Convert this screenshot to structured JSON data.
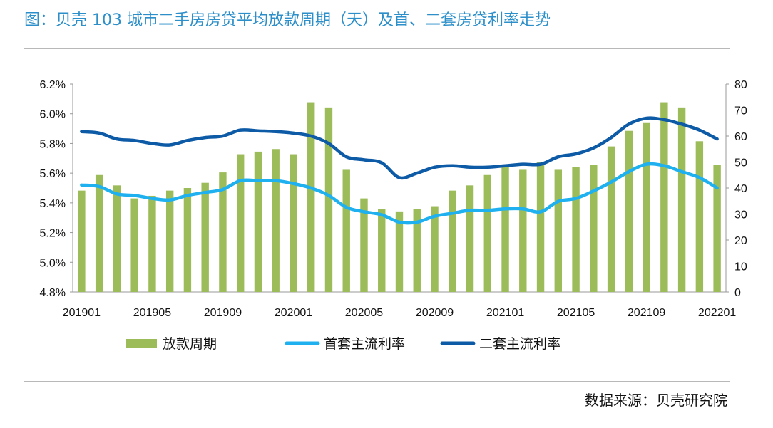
{
  "header": {
    "title": "图：贝壳 103 城市二手房房贷平均放款周期（天）及首、二套房贷利率走势"
  },
  "footer": {
    "source": "数据来源：贝壳研究院"
  },
  "colors": {
    "bar": "#9cbb59",
    "first_rate": "#1fb0ef",
    "second_rate": "#0d5aa6",
    "title": "#2c8fc9"
  },
  "chart_data": {
    "type": "bar+line",
    "categories": [
      "201901",
      "201902",
      "201903",
      "201904",
      "201905",
      "201906",
      "201907",
      "201908",
      "201909",
      "201910",
      "201911",
      "201912",
      "202001",
      "202002",
      "202003",
      "202004",
      "202005",
      "202006",
      "202007",
      "202008",
      "202009",
      "202010",
      "202011",
      "202012",
      "202101",
      "202102",
      "202103",
      "202104",
      "202105",
      "202106",
      "202107",
      "202108",
      "202109",
      "202110",
      "202111",
      "202112",
      "202201"
    ],
    "x_tick_labels": [
      "201901",
      "201905",
      "201909",
      "202001",
      "202005",
      "202009",
      "202101",
      "202105",
      "202109",
      "202201"
    ],
    "y_left": {
      "ticks": [
        "4.8%",
        "5.0%",
        "5.2%",
        "5.4%",
        "5.6%",
        "5.8%",
        "6.0%",
        "6.2%"
      ],
      "range": [
        4.8,
        6.2
      ]
    },
    "y_right": {
      "ticks": [
        "0",
        "10",
        "20",
        "30",
        "40",
        "50",
        "60",
        "70",
        "80"
      ],
      "range": [
        0,
        80
      ]
    },
    "series": [
      {
        "name": "放款周期",
        "type": "bar",
        "axis": "right",
        "values": [
          39,
          45,
          41,
          36,
          37,
          39,
          40,
          42,
          46,
          53,
          54,
          55,
          53,
          73,
          71,
          47,
          36,
          32,
          31,
          32,
          33,
          39,
          41,
          45,
          49,
          47,
          50,
          47,
          48,
          49,
          56,
          62,
          65,
          73,
          71,
          58,
          49
        ]
      },
      {
        "name": "首套主流利率",
        "type": "line",
        "axis": "left",
        "values": [
          5.52,
          5.51,
          5.46,
          5.45,
          5.43,
          5.42,
          5.45,
          5.47,
          5.49,
          5.55,
          5.55,
          5.55,
          5.53,
          5.5,
          5.45,
          5.37,
          5.34,
          5.32,
          5.27,
          5.27,
          5.31,
          5.33,
          5.35,
          5.35,
          5.36,
          5.36,
          5.34,
          5.41,
          5.43,
          5.48,
          5.54,
          5.61,
          5.66,
          5.65,
          5.61,
          5.57,
          5.5
        ]
      },
      {
        "name": "二套主流利率",
        "type": "line",
        "axis": "left",
        "values": [
          5.88,
          5.87,
          5.83,
          5.82,
          5.8,
          5.79,
          5.82,
          5.84,
          5.85,
          5.89,
          5.885,
          5.88,
          5.87,
          5.85,
          5.8,
          5.71,
          5.69,
          5.67,
          5.57,
          5.6,
          5.64,
          5.65,
          5.64,
          5.64,
          5.65,
          5.66,
          5.66,
          5.71,
          5.73,
          5.77,
          5.84,
          5.93,
          5.97,
          5.96,
          5.93,
          5.89,
          5.83
        ]
      }
    ],
    "legend": {
      "position": "bottom"
    },
    "grid": false
  }
}
